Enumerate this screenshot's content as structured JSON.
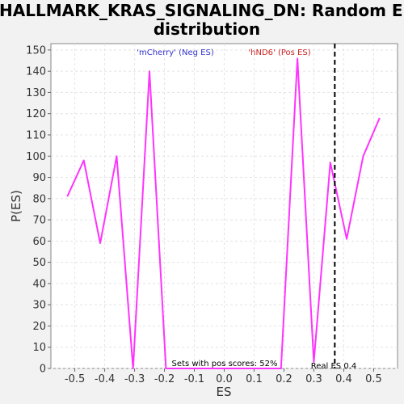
{
  "chart_data": {
    "type": "line",
    "title_line1": "HALLMARK_KRAS_SIGNALING_DN: Random ES",
    "title_line2": "distribution",
    "xlabel": "ES",
    "ylabel": "P(ES)",
    "xlim": [
      -0.58,
      0.58
    ],
    "ylim": [
      0,
      153
    ],
    "x_ticks": [
      "-0.5",
      "-0.4",
      "-0.3",
      "-0.2",
      "-0.1",
      "0.0",
      "0.1",
      "0.2",
      "0.3",
      "0.4",
      "0.5"
    ],
    "x_tick_values": [
      -0.5,
      -0.4,
      -0.3,
      -0.2,
      -0.1,
      0.0,
      0.1,
      0.2,
      0.3,
      0.4,
      0.5
    ],
    "y_ticks": [
      "0",
      "10",
      "20",
      "30",
      "40",
      "50",
      "60",
      "70",
      "80",
      "90",
      "100",
      "110",
      "120",
      "130",
      "140",
      "150"
    ],
    "y_tick_values": [
      0,
      10,
      20,
      30,
      40,
      50,
      60,
      70,
      80,
      90,
      100,
      110,
      120,
      130,
      140,
      150
    ],
    "grid": true,
    "series": [
      {
        "color": "#ff33ff",
        "x": [
          -0.525,
          -0.47,
          -0.415,
          -0.36,
          -0.305,
          -0.25,
          -0.195,
          0.19,
          0.245,
          0.3,
          0.355,
          0.41,
          0.465,
          0.52
        ],
        "y": [
          81,
          98,
          59,
          100,
          0,
          140,
          0,
          0,
          146,
          3,
          97,
          61,
          100,
          118
        ]
      }
    ],
    "real_es": 0.37,
    "annotations": {
      "neg_label": "'mCherry' (Neg ES)",
      "pos_label": "'hND6' (Pos ES)",
      "pos_scores": "Sets with pos scores: 52%",
      "real_es_label": "Real ES 0.4"
    },
    "colors": {
      "line": "#ff33ff",
      "neg_label": "#3333cc",
      "pos_label": "#cc2222",
      "real_es_line": "#000000"
    }
  }
}
